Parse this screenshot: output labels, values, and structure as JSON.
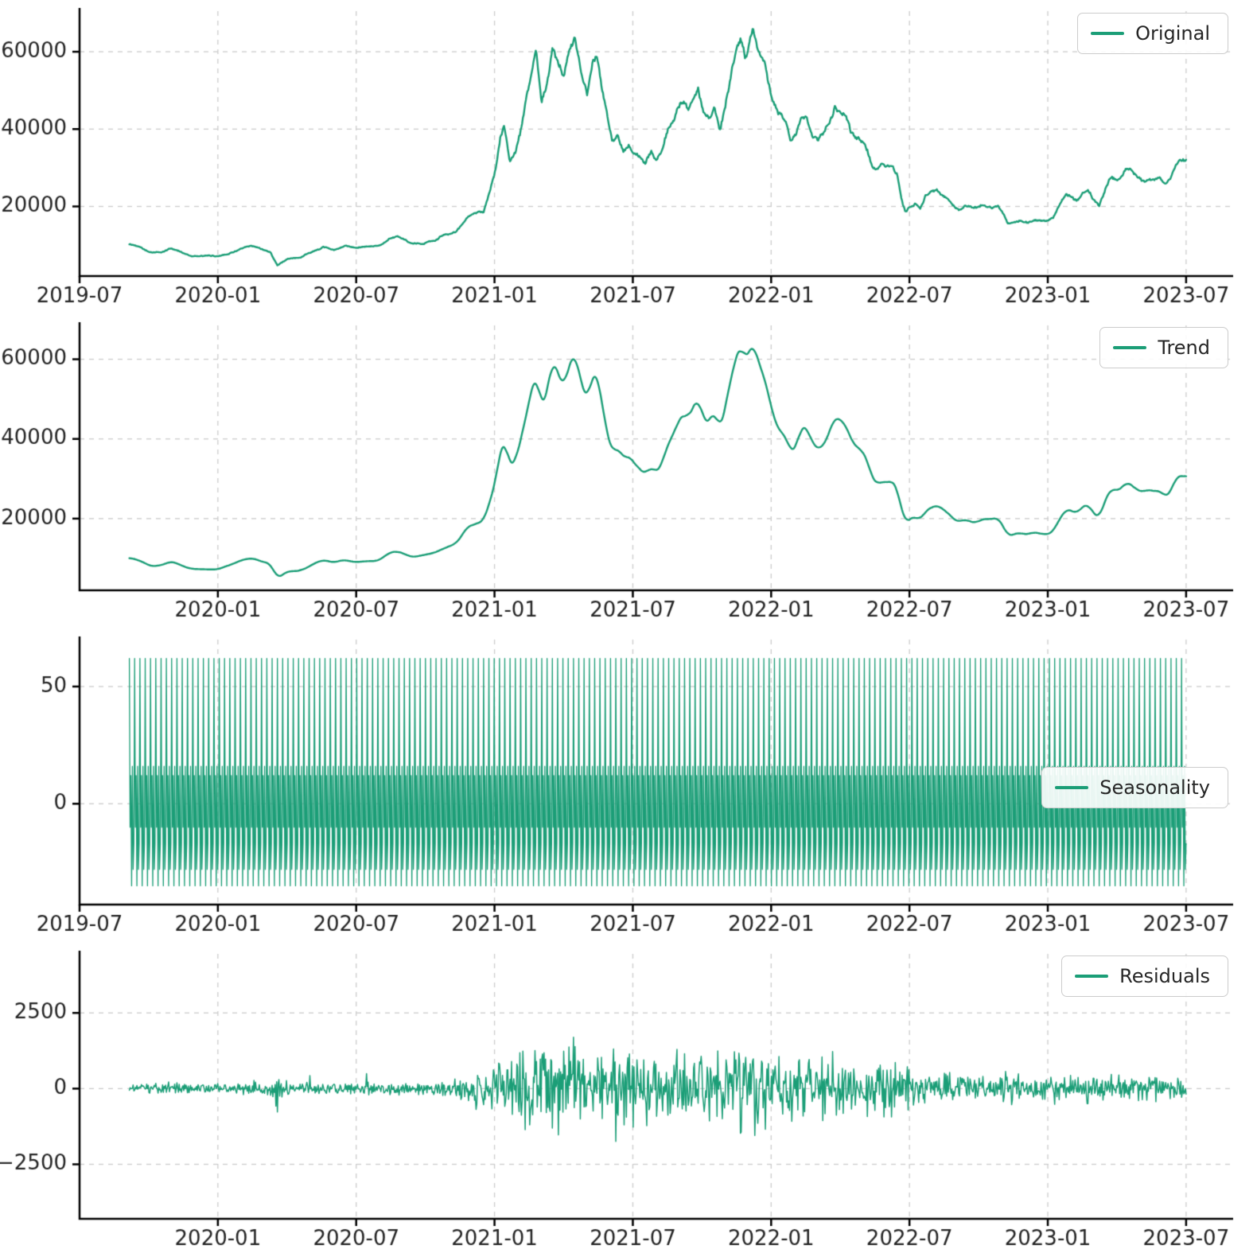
{
  "style": {
    "accent": "#1b9e77",
    "grid_color": "#cccccc",
    "axis_color": "#000000",
    "text_color": "#262626",
    "background": "#ffffff"
  },
  "chart_data": [
    {
      "type": "line",
      "kind": "price",
      "name": "Original",
      "color": "#1b9e77",
      "line_width": 2.4,
      "xlim": [
        2019.5,
        2023.67
      ],
      "ylim": [
        2000,
        70500
      ],
      "x_ticks": [
        2019.5,
        2020.0,
        2020.5,
        2021.0,
        2021.5,
        2022.0,
        2022.5,
        2023.0,
        2023.5
      ],
      "x_tick_labels": [
        "2019-07",
        "2020-01",
        "2020-07",
        "2021-01",
        "2021-07",
        "2022-01",
        "2022-07",
        "2023-01",
        "2023-07"
      ],
      "y_ticks": [
        20000,
        40000,
        60000
      ],
      "y_tick_labels": [
        "20000",
        "40000",
        "60000"
      ],
      "x_range": [
        2019.68,
        2023.5
      ],
      "n_points": 1400,
      "noise": {
        "seed": 42,
        "walk": 0.02,
        "clamp": 0.05,
        "jitter": 0.012
      },
      "legend": {
        "label": "Original",
        "pos": "top-right"
      },
      "keypoints": [
        [
          2019.68,
          10200
        ],
        [
          2019.72,
          9600
        ],
        [
          2019.76,
          8300
        ],
        [
          2019.8,
          8400
        ],
        [
          2019.83,
          9300
        ],
        [
          2019.86,
          8600
        ],
        [
          2019.9,
          7500
        ],
        [
          2019.95,
          7300
        ],
        [
          2020.0,
          7200
        ],
        [
          2020.04,
          8100
        ],
        [
          2020.08,
          9300
        ],
        [
          2020.12,
          10000
        ],
        [
          2020.16,
          9100
        ],
        [
          2020.19,
          8500
        ],
        [
          2020.215,
          4900
        ],
        [
          2020.25,
          6500
        ],
        [
          2020.3,
          6900
        ],
        [
          2020.35,
          8800
        ],
        [
          2020.38,
          9700
        ],
        [
          2020.42,
          8800
        ],
        [
          2020.46,
          9500
        ],
        [
          2020.5,
          9100
        ],
        [
          2020.54,
          9200
        ],
        [
          2020.58,
          9400
        ],
        [
          2020.62,
          11300
        ],
        [
          2020.65,
          11700
        ],
        [
          2020.7,
          10300
        ],
        [
          2020.74,
          10700
        ],
        [
          2020.78,
          11500
        ],
        [
          2020.82,
          13100
        ],
        [
          2020.86,
          14000
        ],
        [
          2020.88,
          15600
        ],
        [
          2020.9,
          18000
        ],
        [
          2020.93,
          18800
        ],
        [
          2020.96,
          19200
        ],
        [
          2020.98,
          23500
        ],
        [
          2021.005,
          29500
        ],
        [
          2021.02,
          37000
        ],
        [
          2021.035,
          40500
        ],
        [
          2021.055,
          31500
        ],
        [
          2021.075,
          33500
        ],
        [
          2021.095,
          39000
        ],
        [
          2021.115,
          47000
        ],
        [
          2021.135,
          52500
        ],
        [
          2021.15,
          57500
        ],
        [
          2021.17,
          46500
        ],
        [
          2021.19,
          50500
        ],
        [
          2021.21,
          59000
        ],
        [
          2021.23,
          56500
        ],
        [
          2021.25,
          53000
        ],
        [
          2021.27,
          59500
        ],
        [
          2021.29,
          63500
        ],
        [
          2021.315,
          54500
        ],
        [
          2021.335,
          50000
        ],
        [
          2021.355,
          57500
        ],
        [
          2021.37,
          58500
        ],
        [
          2021.39,
          49500
        ],
        [
          2021.405,
          43500
        ],
        [
          2021.425,
          36500
        ],
        [
          2021.445,
          39000
        ],
        [
          2021.465,
          35500
        ],
        [
          2021.485,
          37500
        ],
        [
          2021.505,
          34500
        ],
        [
          2021.525,
          33500
        ],
        [
          2021.545,
          31500
        ],
        [
          2021.565,
          34500
        ],
        [
          2021.585,
          32000
        ],
        [
          2021.605,
          35000
        ],
        [
          2021.625,
          40000
        ],
        [
          2021.645,
          42500
        ],
        [
          2021.665,
          46000
        ],
        [
          2021.685,
          48000
        ],
        [
          2021.7,
          46000
        ],
        [
          2021.72,
          49500
        ],
        [
          2021.735,
          52500
        ],
        [
          2021.755,
          46000
        ],
        [
          2021.775,
          44000
        ],
        [
          2021.795,
          48000
        ],
        [
          2021.815,
          41500
        ],
        [
          2021.835,
          48500
        ],
        [
          2021.855,
          55500
        ],
        [
          2021.875,
          62000
        ],
        [
          2021.89,
          66000
        ],
        [
          2021.905,
          61000
        ],
        [
          2021.92,
          64000
        ],
        [
          2021.935,
          67500
        ],
        [
          2021.955,
          60500
        ],
        [
          2021.975,
          57500
        ],
        [
          2021.995,
          50500
        ],
        [
          2022.01,
          46000
        ],
        [
          2022.03,
          43000
        ],
        [
          2022.05,
          41500
        ],
        [
          2022.07,
          36800
        ],
        [
          2022.09,
          38500
        ],
        [
          2022.11,
          44500
        ],
        [
          2022.13,
          44000
        ],
        [
          2022.15,
          40000
        ],
        [
          2022.17,
          38500
        ],
        [
          2022.19,
          40000
        ],
        [
          2022.21,
          43000
        ],
        [
          2022.23,
          47500
        ],
        [
          2022.25,
          46500
        ],
        [
          2022.27,
          45000
        ],
        [
          2022.29,
          40500
        ],
        [
          2022.31,
          39500
        ],
        [
          2022.33,
          38500
        ],
        [
          2022.35,
          35500
        ],
        [
          2022.365,
          31000
        ],
        [
          2022.38,
          29500
        ],
        [
          2022.4,
          30500
        ],
        [
          2022.42,
          29500
        ],
        [
          2022.44,
          30000
        ],
        [
          2022.455,
          28500
        ],
        [
          2022.47,
          22500
        ],
        [
          2022.485,
          19000
        ],
        [
          2022.5,
          20500
        ],
        [
          2022.52,
          21500
        ],
        [
          2022.54,
          20000
        ],
        [
          2022.56,
          23000
        ],
        [
          2022.58,
          23500
        ],
        [
          2022.6,
          24000
        ],
        [
          2022.62,
          22500
        ],
        [
          2022.64,
          21500
        ],
        [
          2022.66,
          20000
        ],
        [
          2022.68,
          19500
        ],
        [
          2022.7,
          20000
        ],
        [
          2022.72,
          19300
        ],
        [
          2022.74,
          19200
        ],
        [
          2022.76,
          20300
        ],
        [
          2022.79,
          20500
        ],
        [
          2022.82,
          20800
        ],
        [
          2022.84,
          18500
        ],
        [
          2022.855,
          15900
        ],
        [
          2022.875,
          16700
        ],
        [
          2022.9,
          17000
        ],
        [
          2022.925,
          16500
        ],
        [
          2022.95,
          17200
        ],
        [
          2022.975,
          16800
        ],
        [
          2023.0,
          16600
        ],
        [
          2023.02,
          17400
        ],
        [
          2023.045,
          21000
        ],
        [
          2023.065,
          23200
        ],
        [
          2023.085,
          23000
        ],
        [
          2023.105,
          21800
        ],
        [
          2023.125,
          23600
        ],
        [
          2023.145,
          24600
        ],
        [
          2023.165,
          22200
        ],
        [
          2023.185,
          20300
        ],
        [
          2023.205,
          25000
        ],
        [
          2023.225,
          28200
        ],
        [
          2023.245,
          27800
        ],
        [
          2023.265,
          28500
        ],
        [
          2023.285,
          30200
        ],
        [
          2023.305,
          29300
        ],
        [
          2023.325,
          27600
        ],
        [
          2023.345,
          26900
        ],
        [
          2023.365,
          27300
        ],
        [
          2023.385,
          26700
        ],
        [
          2023.405,
          27200
        ],
        [
          2023.425,
          25300
        ],
        [
          2023.445,
          26600
        ],
        [
          2023.465,
          30300
        ],
        [
          2023.485,
          30600
        ],
        [
          2023.5,
          30700
        ]
      ]
    },
    {
      "type": "line",
      "kind": "price",
      "name": "Trend",
      "color": "#1b9e77",
      "line_width": 2.4,
      "xlim": [
        2019.5,
        2023.67
      ],
      "ylim": [
        2000,
        68500
      ],
      "x_ticks": [
        2020.0,
        2020.5,
        2021.0,
        2021.5,
        2022.0,
        2022.5,
        2023.0,
        2023.5
      ],
      "x_tick_labels": [
        "2020-01",
        "2020-07",
        "2021-01",
        "2021-07",
        "2022-01",
        "2022-07",
        "2023-01",
        "2023-07"
      ],
      "y_ticks": [
        20000,
        40000,
        60000
      ],
      "y_tick_labels": [
        "20000",
        "40000",
        "60000"
      ],
      "x_range": [
        2019.68,
        2023.5
      ],
      "n_points": 1400,
      "keypoints_from": 0,
      "smooth": 6,
      "noise": {
        "seed": 7,
        "walk": 0.015,
        "clamp": 0.04,
        "jitter": 0.004
      },
      "legend": {
        "label": "Trend",
        "pos": "top-right"
      }
    },
    {
      "type": "line",
      "kind": "seasonal",
      "name": "Seasonality",
      "color": "#1b9e77",
      "line_width": 1.3,
      "xlim": [
        2019.5,
        2023.67
      ],
      "ylim": [
        -43,
        70
      ],
      "x_ticks": [
        2019.5,
        2020.0,
        2020.5,
        2021.0,
        2021.5,
        2022.0,
        2022.5,
        2023.0,
        2023.5
      ],
      "x_tick_labels": [
        "2019-07",
        "2020-01",
        "2020-07",
        "2021-01",
        "2021-07",
        "2022-01",
        "2022-07",
        "2023-01",
        "2023-07"
      ],
      "y_ticks": [
        0,
        50
      ],
      "y_tick_labels": [
        "0",
        "50"
      ],
      "x_range": [
        2019.68,
        2023.5
      ],
      "n_points": 1400,
      "pattern": [
        62,
        -10,
        12,
        -35,
        16,
        -28,
        -17
      ],
      "legend": {
        "label": "Seasonality",
        "pos": "mid-right"
      }
    },
    {
      "type": "line",
      "kind": "residual",
      "name": "Residuals",
      "color": "#1b9e77",
      "line_width": 1.5,
      "xlim": [
        2019.5,
        2023.67
      ],
      "ylim": [
        -4300,
        4450
      ],
      "x_ticks": [
        2020.0,
        2020.5,
        2021.0,
        2021.5,
        2022.0,
        2022.5,
        2023.0,
        2023.5
      ],
      "x_tick_labels": [
        "2020-01",
        "2020-07",
        "2021-01",
        "2021-07",
        "2022-01",
        "2022-07",
        "2023-01",
        "2023-07"
      ],
      "y_ticks": [
        -2500,
        0,
        2500
      ],
      "y_tick_labels": [
        "−2500",
        "0",
        "2500"
      ],
      "x_range": [
        2019.68,
        2023.5
      ],
      "n_points": 1400,
      "seed": 9,
      "spike_prob": 0.012,
      "spike_mult": 2.1,
      "envelope": [
        [
          2019.68,
          260
        ],
        [
          2020.1,
          280
        ],
        [
          2020.19,
          320
        ],
        [
          2020.215,
          950
        ],
        [
          2020.26,
          330
        ],
        [
          2020.6,
          300
        ],
        [
          2020.85,
          400
        ],
        [
          2020.95,
          700
        ],
        [
          2021.0,
          1200
        ],
        [
          2021.05,
          1600
        ],
        [
          2021.1,
          1900
        ],
        [
          2021.15,
          2100
        ],
        [
          2021.25,
          1900
        ],
        [
          2021.35,
          2000
        ],
        [
          2021.45,
          1900
        ],
        [
          2021.55,
          1600
        ],
        [
          2021.65,
          1500
        ],
        [
          2021.75,
          1800
        ],
        [
          2021.85,
          1900
        ],
        [
          2021.95,
          1900
        ],
        [
          2022.05,
          1500
        ],
        [
          2022.15,
          1400
        ],
        [
          2022.25,
          1400
        ],
        [
          2022.35,
          1400
        ],
        [
          2022.45,
          1300
        ],
        [
          2022.55,
          950
        ],
        [
          2022.65,
          800
        ],
        [
          2022.75,
          650
        ],
        [
          2022.85,
          900
        ],
        [
          2022.95,
          550
        ],
        [
          2023.05,
          650
        ],
        [
          2023.2,
          700
        ],
        [
          2023.35,
          550
        ],
        [
          2023.5,
          480
        ]
      ],
      "legend": {
        "label": "Residuals",
        "pos": "top-right"
      }
    }
  ]
}
